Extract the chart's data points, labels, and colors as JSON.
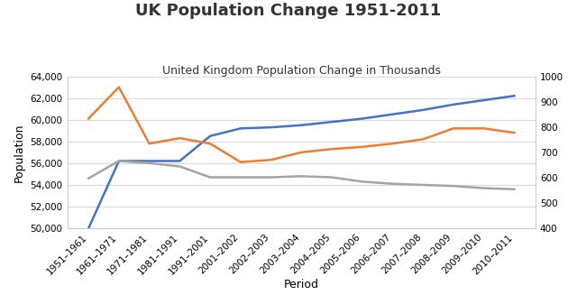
{
  "title": "UK Population Change 1951-2011",
  "subtitle": "United Kingdom Population Change in Thousands",
  "xlabel": "Period",
  "ylabel": "Population",
  "periods": [
    "1951–1961",
    "1961–1971",
    "1971–1981",
    "1981–1991",
    "1991–2001",
    "2001–2002",
    "2002–2003",
    "2003–2004",
    "2004–2005",
    "2005–2006",
    "2006–2007",
    "2007–2008",
    "2008–2009",
    "2009–2010",
    "2010–2011"
  ],
  "blue_line": [
    50000,
    56200,
    56200,
    56200,
    58500,
    59200,
    59300,
    59500,
    59800,
    60100,
    60500,
    60900,
    61400,
    61800,
    62200
  ],
  "orange_line": [
    60100,
    63000,
    57800,
    58300,
    57800,
    56100,
    56300,
    57000,
    57300,
    57500,
    57800,
    58200,
    59200,
    59200,
    58800
  ],
  "gray_line": [
    54600,
    56200,
    56000,
    55700,
    54700,
    54700,
    54700,
    54800,
    54700,
    54300,
    54100,
    54000,
    53900,
    53700,
    53600
  ],
  "blue_color": "#4472C4",
  "orange_color": "#ED7D31",
  "gray_color": "#A5A5A5",
  "ylim_left": [
    50000,
    64000
  ],
  "ylim_right": [
    400,
    1000
  ],
  "yticks_left": [
    50000,
    52000,
    54000,
    56000,
    58000,
    60000,
    62000,
    64000
  ],
  "yticks_right": [
    400,
    500,
    600,
    700,
    800,
    900,
    1000
  ],
  "bg_color": "#FFFFFF",
  "title_fontsize": 13,
  "subtitle_fontsize": 9,
  "axis_label_fontsize": 9,
  "tick_fontsize": 7.5
}
